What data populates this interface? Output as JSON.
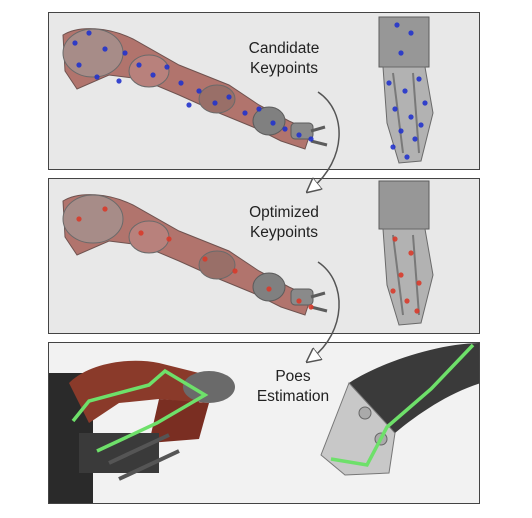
{
  "panels": [
    {
      "id": "candidate",
      "label_line1": "Candidate",
      "label_line2": "Keypoints",
      "keypoint_color": "#2233cc"
    },
    {
      "id": "optimized",
      "label_line1": "Optimized",
      "label_line2": "Keypoints",
      "keypoint_color": "#d83a2a"
    },
    {
      "id": "pose",
      "label_line1": "Poes",
      "label_line2": "Estimation",
      "skeleton_color": "#6ee06a"
    }
  ],
  "colors": {
    "arm_red": "#a04a40",
    "metal": "#707070",
    "arrow": "#555555"
  }
}
